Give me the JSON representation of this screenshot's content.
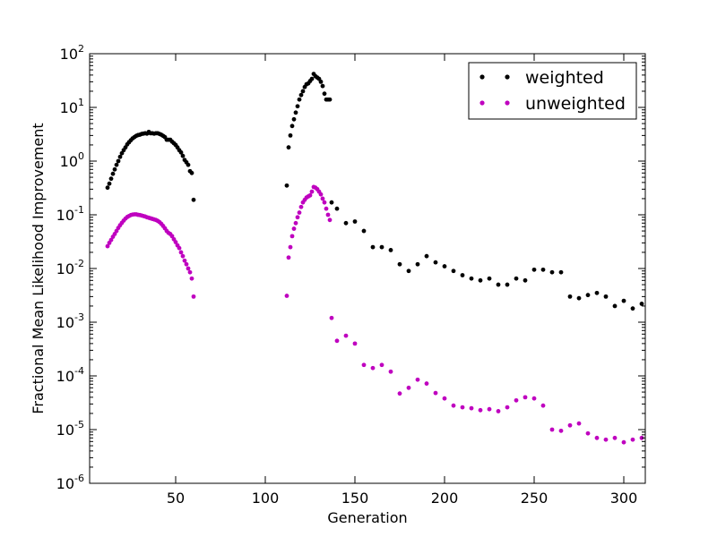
{
  "chart_data": {
    "type": "scatter",
    "xlabel": "Generation",
    "ylabel": "Fractional Mean Likelihood Improvement",
    "xlim": [
      2,
      312
    ],
    "ylim": [
      1e-06,
      100
    ],
    "yscale": "log",
    "grid": false,
    "legend_position": "top-right",
    "x_ticks": [
      50,
      100,
      150,
      200,
      250,
      300
    ],
    "y_ticks": [
      {
        "value": 1e-06,
        "base": "10",
        "exp": "-6"
      },
      {
        "value": 1e-05,
        "base": "10",
        "exp": "-5"
      },
      {
        "value": 0.0001,
        "base": "10",
        "exp": "-4"
      },
      {
        "value": 0.001,
        "base": "10",
        "exp": "-3"
      },
      {
        "value": 0.01,
        "base": "10",
        "exp": "-2"
      },
      {
        "value": 0.1,
        "base": "10",
        "exp": "-1"
      },
      {
        "value": 1,
        "base": "10",
        "exp": "0"
      },
      {
        "value": 10,
        "base": "10",
        "exp": "1"
      },
      {
        "value": 100,
        "base": "10",
        "exp": "2"
      }
    ],
    "series": [
      {
        "name": "weighted",
        "color": "#000000",
        "x": [
          12,
          13,
          14,
          15,
          16,
          17,
          18,
          19,
          20,
          21,
          22,
          23,
          24,
          25,
          26,
          27,
          28,
          29,
          30,
          31,
          32,
          33,
          34,
          35,
          36,
          37,
          38,
          39,
          40,
          41,
          42,
          43,
          44,
          45,
          46,
          47,
          48,
          49,
          50,
          51,
          52,
          53,
          54,
          55,
          56,
          57,
          58,
          59,
          60,
          112,
          113,
          114,
          115,
          116,
          117,
          118,
          119,
          120,
          121,
          122,
          123,
          124,
          125,
          126,
          127,
          128,
          129,
          130,
          131,
          132,
          133,
          134,
          135,
          136,
          137,
          140,
          145,
          150,
          155,
          160,
          165,
          170,
          175,
          180,
          185,
          190,
          195,
          200,
          205,
          210,
          215,
          220,
          225,
          230,
          235,
          240,
          245,
          250,
          255,
          260,
          265,
          270,
          275,
          280,
          285,
          290,
          295,
          300,
          305,
          310
        ],
        "y": [
          0.32,
          0.38,
          0.47,
          0.58,
          0.7,
          0.85,
          1.0,
          1.2,
          1.4,
          1.6,
          1.8,
          2.05,
          2.25,
          2.45,
          2.65,
          2.8,
          2.95,
          3.05,
          3.1,
          3.2,
          3.25,
          3.3,
          3.25,
          3.5,
          3.3,
          3.3,
          3.25,
          3.3,
          3.3,
          3.2,
          3.1,
          2.95,
          2.8,
          2.5,
          2.5,
          2.5,
          2.3,
          2.15,
          2.0,
          1.8,
          1.6,
          1.45,
          1.25,
          1.05,
          0.95,
          0.85,
          0.65,
          0.6,
          0.19,
          0.35,
          1.8,
          3.0,
          4.5,
          6.0,
          8.0,
          10.5,
          14,
          17,
          20,
          24,
          27,
          28,
          31,
          34,
          42,
          38,
          36,
          34,
          30,
          25,
          18,
          14,
          14,
          14,
          0.17,
          0.13,
          0.07,
          0.075,
          0.05,
          0.025,
          0.025,
          0.022,
          0.012,
          0.009,
          0.012,
          0.017,
          0.013,
          0.011,
          0.009,
          0.0075,
          0.0065,
          0.006,
          0.0065,
          0.005,
          0.005,
          0.0065,
          0.006,
          0.0095,
          0.0095,
          0.0085,
          0.0085,
          0.003,
          0.0028,
          0.0032,
          0.0035,
          0.003,
          0.002,
          0.0025,
          0.0018,
          0.0022
        ]
      },
      {
        "name": "unweighted",
        "color": "#bf00bf",
        "x": [
          12,
          13,
          14,
          15,
          16,
          17,
          18,
          19,
          20,
          21,
          22,
          23,
          24,
          25,
          26,
          27,
          28,
          29,
          30,
          31,
          32,
          33,
          34,
          35,
          36,
          37,
          38,
          39,
          40,
          41,
          42,
          43,
          44,
          45,
          46,
          47,
          48,
          49,
          50,
          51,
          52,
          53,
          54,
          55,
          56,
          57,
          58,
          59,
          60,
          112,
          113,
          114,
          115,
          116,
          117,
          118,
          119,
          120,
          121,
          122,
          123,
          124,
          125,
          126,
          127,
          128,
          129,
          130,
          131,
          132,
          133,
          134,
          135,
          136,
          137,
          140,
          145,
          150,
          155,
          160,
          165,
          170,
          175,
          180,
          185,
          190,
          195,
          200,
          205,
          210,
          215,
          220,
          225,
          230,
          235,
          240,
          245,
          250,
          255,
          260,
          265,
          270,
          275,
          280,
          285,
          290,
          295,
          300,
          305,
          310
        ],
        "y": [
          0.026,
          0.03,
          0.034,
          0.039,
          0.044,
          0.05,
          0.057,
          0.064,
          0.071,
          0.078,
          0.085,
          0.091,
          0.095,
          0.099,
          0.101,
          0.102,
          0.102,
          0.1,
          0.099,
          0.097,
          0.095,
          0.093,
          0.09,
          0.088,
          0.086,
          0.084,
          0.082,
          0.08,
          0.077,
          0.073,
          0.068,
          0.062,
          0.056,
          0.05,
          0.046,
          0.044,
          0.04,
          0.035,
          0.031,
          0.027,
          0.024,
          0.02,
          0.017,
          0.014,
          0.012,
          0.01,
          0.0085,
          0.0065,
          0.003,
          0.0031,
          0.016,
          0.025,
          0.04,
          0.055,
          0.07,
          0.09,
          0.11,
          0.14,
          0.17,
          0.19,
          0.21,
          0.22,
          0.23,
          0.27,
          0.33,
          0.32,
          0.3,
          0.27,
          0.24,
          0.2,
          0.17,
          0.13,
          0.1,
          0.08,
          0.0012,
          0.00045,
          0.00056,
          0.0004,
          0.00016,
          0.00014,
          0.00016,
          0.00012,
          4.7e-05,
          6e-05,
          8.5e-05,
          7.2e-05,
          4.8e-05,
          3.8e-05,
          2.8e-05,
          2.6e-05,
          2.5e-05,
          2.3e-05,
          2.4e-05,
          2.2e-05,
          2.6e-05,
          3.5e-05,
          4e-05,
          3.8e-05,
          2.8e-05,
          1e-05,
          9.5e-06,
          1.2e-05,
          1.3e-05,
          8.5e-06,
          7e-06,
          6.5e-06,
          7e-06,
          5.8e-06,
          6.5e-06,
          7e-06
        ]
      }
    ]
  }
}
